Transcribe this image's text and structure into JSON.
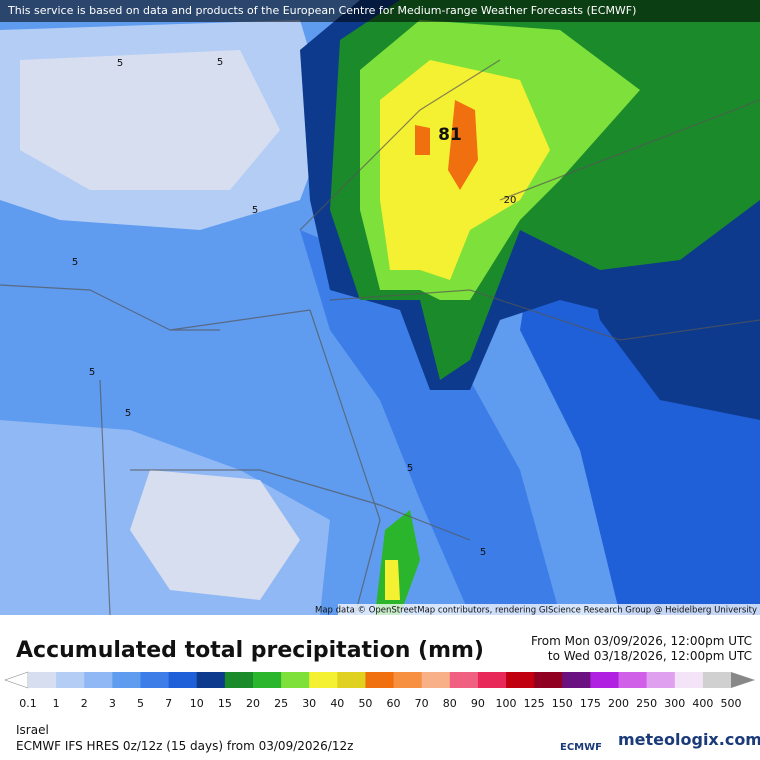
{
  "attribution_top": "This service is based on data and products of the European Centre for Medium-range Weather Forecasts (ECMWF)",
  "map_credit": "Map data © OpenStreetMap contributors, rendering GIScience Research Group @ Heidelberg University",
  "contour_labels": [
    "5",
    "5",
    "5",
    "5",
    "5",
    "5",
    "5",
    "5",
    "81",
    "20"
  ],
  "title": "Accumulated total precipitation (mm)",
  "period": {
    "from": "From Mon 03/09/2026, 12:00pm UTC",
    "to": "to Wed 03/18/2026, 12:00pm UTC"
  },
  "colorbar": {
    "labels": [
      0.1,
      1,
      2,
      3,
      5,
      7,
      10,
      15,
      20,
      25,
      30,
      40,
      50,
      60,
      70,
      80,
      90,
      100,
      125,
      150,
      175,
      200,
      250,
      300,
      400,
      500
    ],
    "colors": [
      "#ffffff",
      "#d7def0",
      "#b4cdf5",
      "#8fb8f4",
      "#5f9bef",
      "#3d7de8",
      "#1f5fd8",
      "#0d3a8c",
      "#1b8a2b",
      "#2bb52c",
      "#7ee03a",
      "#f4f032",
      "#e0d020",
      "#f07010",
      "#f79040",
      "#f8b088",
      "#f06080",
      "#e82858",
      "#c00010",
      "#900020",
      "#6a1080",
      "#b020e0",
      "#d060e8",
      "#e0a0f0",
      "#f4e4f8",
      "#d0d0d0",
      "#888888"
    ]
  },
  "region": "Israel",
  "model": "ECMWF IFS HRES 0z/12z (15 days) from 03/09/2026/12z",
  "logos": [
    "ECMWF",
    "meteologix.com"
  ]
}
